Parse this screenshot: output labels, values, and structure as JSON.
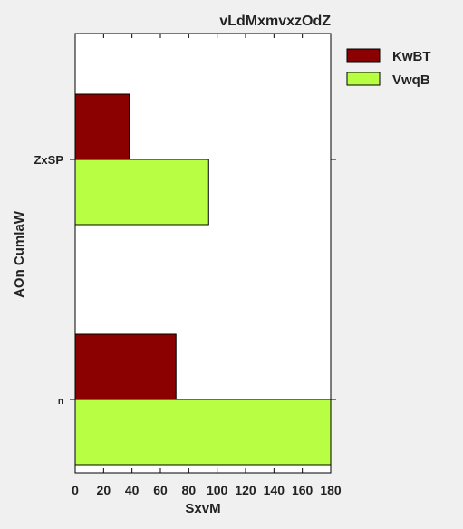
{
  "chart_data": {
    "type": "bar",
    "orientation": "horizontal",
    "title": "vLdMxmvxzOdZ",
    "xlabel": "SxvM",
    "ylabel": "AOn CumlaW",
    "categories": [
      "n",
      "ZxSP"
    ],
    "series": [
      {
        "name": "KwBT",
        "values": [
          71,
          38
        ],
        "color": "#8b0000"
      },
      {
        "name": "VwqB",
        "values": [
          180,
          94
        ],
        "color": "#b8ff44"
      }
    ],
    "xlim": [
      0,
      180
    ],
    "xticks": [
      0,
      20,
      40,
      60,
      80,
      100,
      120,
      140,
      160,
      180
    ],
    "grid": false,
    "legend_position": "outside-top-right"
  }
}
